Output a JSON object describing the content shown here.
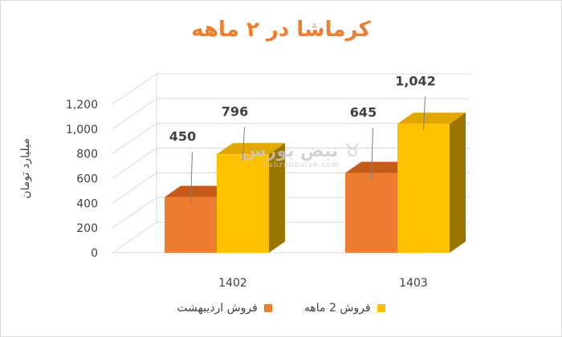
{
  "chart_data": {
    "type": "bar",
    "title": "کرماشا در ۲ ماهه",
    "ylabel": "میلیارد تومان",
    "xlabel": "",
    "categories": [
      "1402",
      "1403"
    ],
    "series": [
      {
        "name": "فروش اردیبهشت",
        "values": [
          450,
          645
        ],
        "labels": [
          "450",
          "645"
        ],
        "color": "#ed7d31",
        "side_color": "#b0561c",
        "top_color": "#c55a1a"
      },
      {
        "name": "فروش 2 ماهه",
        "values": [
          796,
          1042
        ],
        "labels": [
          "796",
          "1,042"
        ],
        "color": "#ffc000",
        "side_color": "#9a7500",
        "top_color": "#e0a800"
      }
    ],
    "y_ticks": [
      0,
      200,
      400,
      600,
      800,
      1000,
      1200
    ],
    "y_tick_labels": [
      "0",
      "200",
      "400",
      "600",
      "800",
      "1,000",
      "1,200"
    ],
    "ylim": [
      0,
      1200
    ],
    "grid": true,
    "legend_position": "bottom"
  },
  "watermark": {
    "logo_text": "نبض بورس",
    "url": "nabzebourse.com",
    "icon": "bull-icon"
  }
}
